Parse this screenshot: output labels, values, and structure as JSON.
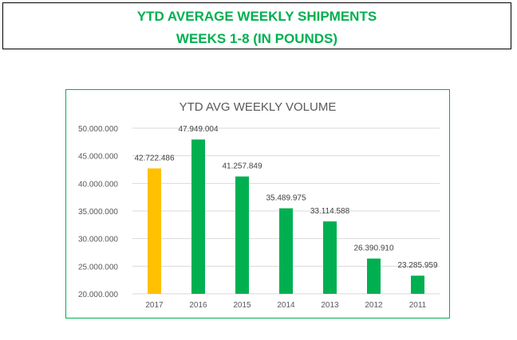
{
  "header": {
    "line1": "YTD AVERAGE WEEKLY SHIPMENTS",
    "line2": "WEEKS 1-8 (IN POUNDS)",
    "color": "#00b050"
  },
  "chart_data": {
    "type": "bar",
    "title": "YTD AVG WEEKLY VOLUME",
    "xlabel": "",
    "ylabel": "",
    "categories": [
      "2017",
      "2016",
      "2015",
      "2014",
      "2013",
      "2012",
      "2011"
    ],
    "values": [
      42722486,
      47949004,
      41257849,
      35489975,
      33114588,
      26390910,
      23285959
    ],
    "value_labels": [
      "42.722.486",
      "47.949.004",
      "41.257.849",
      "35.489.975",
      "33.114.588",
      "26.390.910",
      "23.285.959"
    ],
    "bar_colors": [
      "#ffc000",
      "#00b050",
      "#00b050",
      "#00b050",
      "#00b050",
      "#00b050",
      "#00b050"
    ],
    "ylim": [
      20000000,
      50000000
    ],
    "yticks": [
      20000000,
      25000000,
      30000000,
      35000000,
      40000000,
      45000000,
      50000000
    ],
    "ytick_labels": [
      "20.000.000",
      "25.000.000",
      "30.000.000",
      "35.000.000",
      "40.000.000",
      "45.000.000",
      "50.000.000"
    ],
    "grid": true,
    "legend": "none",
    "frame_color": "#00b050"
  }
}
